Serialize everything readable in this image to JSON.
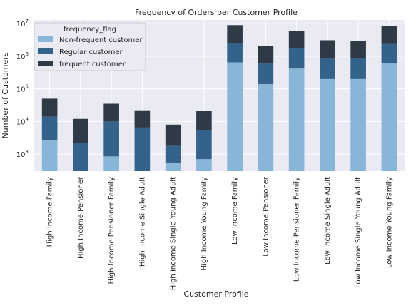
{
  "chart_data": {
    "type": "bar",
    "stacked": true,
    "title": "Frequency of Orders per Customer Profile",
    "xlabel": "Customer Profile",
    "ylabel": "Number of Customers",
    "yscale": "log",
    "ylim": [
      300,
      13000000
    ],
    "yticks": [
      {
        "value": 1000,
        "base": "10",
        "exp": "3"
      },
      {
        "value": 10000,
        "base": "10",
        "exp": "4"
      },
      {
        "value": 100000,
        "base": "10",
        "exp": "5"
      },
      {
        "value": 1000000,
        "base": "10",
        "exp": "6"
      },
      {
        "value": 10000000,
        "base": "10",
        "exp": "7"
      }
    ],
    "grid": true,
    "legend": {
      "title": "frequency_flag",
      "position": "top-left"
    },
    "categories": [
      "High Income Family",
      "High Income Pensioner",
      "High Income Pensioner Family",
      "High Income Single Adult",
      "High Income Single Young Adult",
      "High Income Young Family",
      "Low Income Family",
      "Low Income Pensioner",
      "Low Income Pensioner Family",
      "Low Income Single Adult",
      "Low Income Single Young Adult",
      "Low Income Young Family"
    ],
    "series": [
      {
        "name": "Non-frequent customer",
        "color": "#87b6d8",
        "values": [
          2700,
          0,
          850,
          0,
          550,
          700,
          650000,
          140000,
          420000,
          200000,
          200000,
          600000
        ]
      },
      {
        "name": "Regular customer",
        "color": "#33628b",
        "values": [
          11300,
          2200,
          9150,
          6500,
          1250,
          4800,
          1850000,
          460000,
          1380000,
          700000,
          700000,
          1800000
        ]
      },
      {
        "name": "frequent customer",
        "color": "#2e3b47",
        "values": [
          36000,
          9800,
          25000,
          15500,
          6200,
          15500,
          6500000,
          1500000,
          4300000,
          2200000,
          2000000,
          6200000
        ]
      }
    ]
  }
}
